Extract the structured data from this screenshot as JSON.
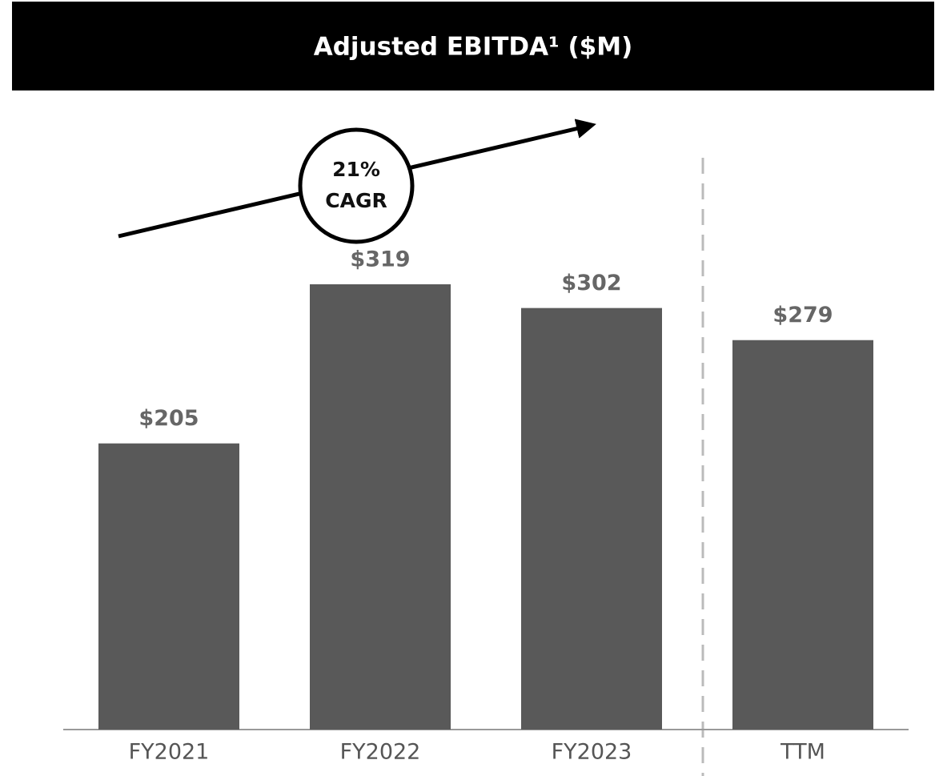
{
  "chart_data": {
    "type": "bar",
    "title": "Adjusted EBITDA¹ ($M)",
    "categories": [
      "FY2021",
      "FY2022",
      "FY2023",
      "TTM"
    ],
    "values": [
      205,
      319,
      302,
      279
    ],
    "value_labels": [
      "$205",
      "$319",
      "$302",
      "$279"
    ],
    "color": "#595959",
    "annotation": [
      "21%",
      "CAGR"
    ]
  }
}
